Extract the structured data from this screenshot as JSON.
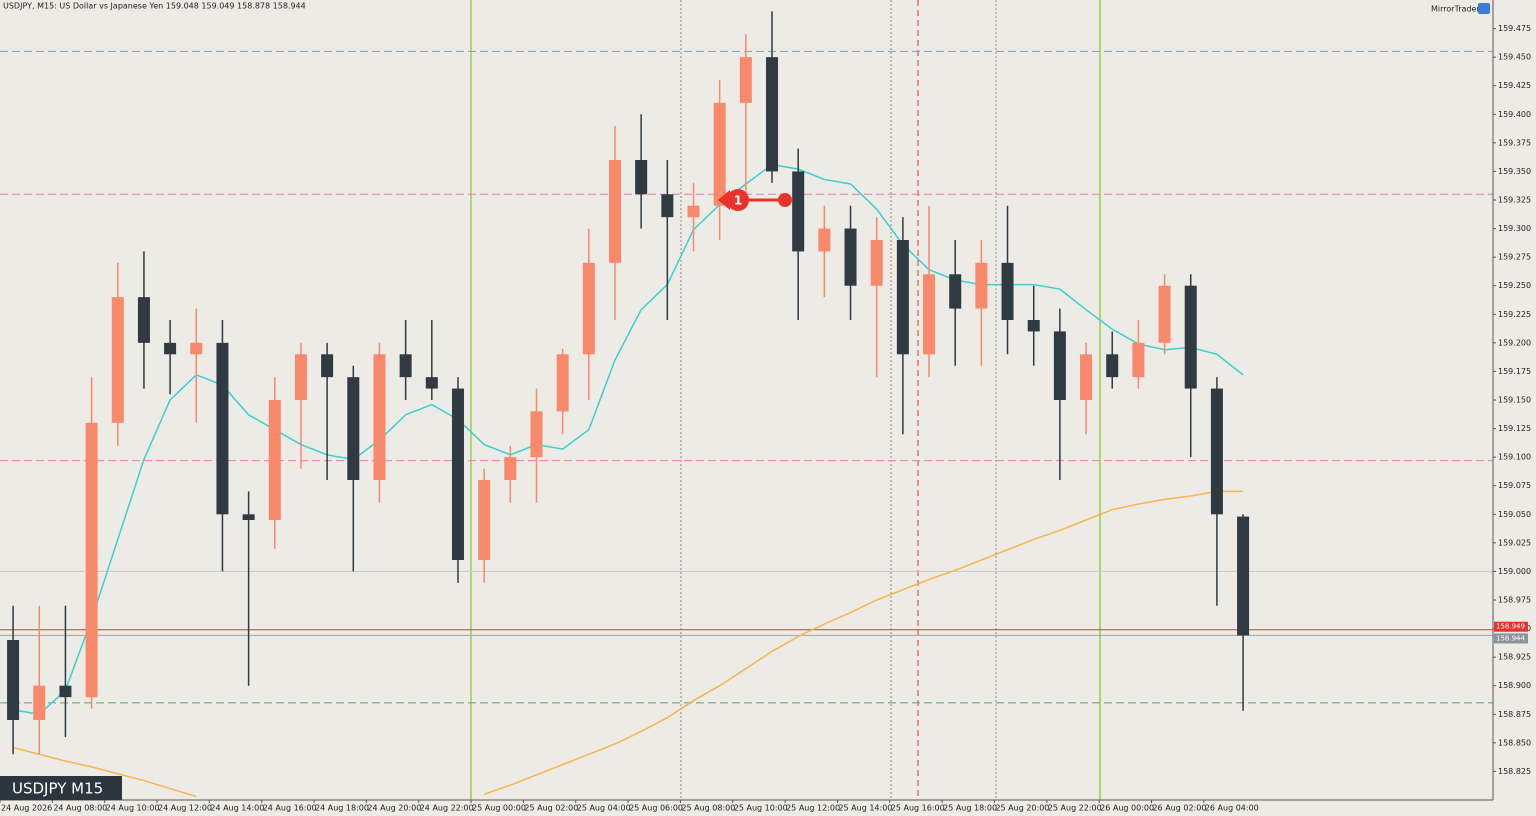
{
  "header": {
    "title": "USDJPY, M15:  US Dollar vs Japanese Yen  159.048 159.049 158.878 158.944",
    "brand": "MirrorTrader",
    "symbol_label": "USDJPY M15"
  },
  "chart_data": {
    "type": "candlestick",
    "categories": [
      "24 Aug 2026",
      null,
      "24 Aug 08:00",
      null,
      "24 Aug 10:00",
      null,
      "24 Aug 12:00",
      null,
      "24 Aug 14:00",
      null,
      "24 Aug 16:00",
      null,
      "24 Aug 18:00",
      null,
      "24 Aug 20:00",
      null,
      "24 Aug 22:00",
      null,
      "25 Aug 00:00",
      null,
      "25 Aug 02:00",
      null,
      "25 Aug 04:00",
      null,
      "25 Aug 06:00",
      null,
      "25 Aug 08:00",
      null,
      "25 Aug 10:00",
      null,
      "25 Aug 12:00",
      null,
      "25 Aug 14:00",
      null,
      "25 Aug 16:00",
      null,
      "25 Aug 18:00",
      null,
      "25 Aug 20:00",
      null,
      "25 Aug 22:00",
      null,
      "26 Aug 00:00",
      null,
      "26 Aug 02:00",
      null,
      "26 Aug 04:00",
      null
    ],
    "open": [
      158.94,
      158.87,
      158.9,
      158.89,
      159.13,
      159.24,
      159.2,
      159.19,
      159.2,
      159.05,
      159.045,
      159.15,
      159.19,
      159.17,
      159.08,
      159.19,
      159.17,
      159.16,
      159.01,
      159.08,
      159.1,
      159.14,
      159.19,
      159.27,
      159.36,
      159.33,
      159.31,
      159.32,
      159.41,
      159.45,
      159.35,
      159.28,
      159.3,
      159.25,
      159.29,
      159.19,
      159.26,
      159.23,
      159.27,
      159.22,
      159.21,
      159.15,
      159.19,
      159.17,
      159.2,
      159.25,
      159.16,
      159.048
    ],
    "high": [
      158.97,
      158.97,
      158.97,
      159.17,
      159.27,
      159.28,
      159.22,
      159.23,
      159.22,
      159.07,
      159.17,
      159.2,
      159.2,
      159.18,
      159.2,
      159.22,
      159.22,
      159.17,
      159.09,
      159.11,
      159.16,
      159.195,
      159.3,
      159.39,
      159.4,
      159.36,
      159.34,
      159.43,
      159.47,
      159.49,
      159.37,
      159.32,
      159.32,
      159.31,
      159.31,
      159.32,
      159.29,
      159.29,
      159.32,
      159.25,
      159.23,
      159.2,
      159.21,
      159.22,
      159.26,
      159.26,
      159.17,
      159.05
    ],
    "low": [
      158.84,
      158.84,
      158.855,
      158.88,
      159.11,
      159.16,
      159.155,
      159.13,
      159.0,
      158.9,
      159.02,
      159.09,
      159.08,
      159.0,
      159.06,
      159.15,
      159.15,
      158.99,
      158.99,
      159.06,
      159.06,
      159.12,
      159.15,
      159.22,
      159.3,
      159.22,
      159.28,
      159.29,
      159.33,
      159.34,
      159.22,
      159.24,
      159.22,
      159.17,
      159.12,
      159.17,
      159.18,
      159.18,
      159.19,
      159.18,
      159.08,
      159.12,
      159.16,
      159.16,
      159.19,
      159.1,
      158.97,
      158.878
    ],
    "close": [
      158.87,
      158.9,
      158.89,
      159.13,
      159.24,
      159.2,
      159.19,
      159.2,
      159.05,
      159.045,
      159.15,
      159.19,
      159.17,
      159.08,
      159.19,
      159.17,
      159.16,
      159.01,
      159.08,
      159.1,
      159.14,
      159.19,
      159.27,
      159.36,
      159.33,
      159.31,
      159.32,
      159.41,
      159.45,
      159.35,
      159.28,
      159.3,
      159.25,
      159.29,
      159.19,
      159.26,
      159.23,
      159.27,
      159.22,
      159.21,
      159.15,
      159.19,
      159.17,
      159.2,
      159.25,
      159.16,
      159.05,
      158.944
    ],
    "up_color": "#f8896a",
    "down_color": "#303a42",
    "lines": [
      {
        "color": "#3ccfd0",
        "values": [
          158.879,
          158.875,
          158.896,
          158.958,
          159.028,
          159.098,
          159.15,
          159.172,
          159.163,
          159.137,
          159.124,
          159.111,
          159.102,
          159.098,
          159.115,
          159.137,
          159.146,
          159.133,
          159.111,
          159.102,
          159.111,
          159.107,
          159.124,
          159.185,
          159.229,
          159.251,
          159.299,
          159.321,
          159.339,
          159.356,
          159.352,
          159.343,
          159.339,
          159.317,
          159.286,
          159.264,
          159.255,
          159.251,
          159.251,
          159.251,
          159.247,
          159.229,
          159.212,
          159.199,
          159.194,
          159.196,
          159.19,
          159.172
        ]
      },
      {
        "color": "#f7b54a",
        "values": [
          158.846,
          158.84,
          158.834,
          158.829,
          158.823,
          158.817,
          158.81,
          158.803,
          null,
          null,
          null,
          null,
          null,
          null,
          null,
          null,
          null,
          null,
          158.805,
          158.813,
          158.822,
          158.831,
          158.84,
          158.849,
          158.86,
          158.872,
          158.887,
          158.9,
          158.915,
          158.93,
          158.943,
          158.954,
          158.964,
          158.975,
          158.984,
          158.993,
          159.001,
          159.01,
          159.019,
          159.028,
          159.036,
          159.045,
          159.054,
          159.059,
          159.063,
          159.066,
          159.07,
          159.07
        ]
      }
    ],
    "levels": [
      {
        "value": 159.455,
        "color": "#7f9cc4",
        "dash": true
      },
      {
        "value": 159.33,
        "color": "#e97aa7",
        "dash": true
      },
      {
        "value": 159.097,
        "color": "#e97aa7",
        "dash": true
      },
      {
        "value": 159.0,
        "color": "#c8c8c8",
        "dash": false
      },
      {
        "value": 158.885,
        "color": "#5f9e74",
        "dash": true
      },
      {
        "value": 158.949,
        "color": "#e8322b",
        "dash": false
      },
      {
        "value": 158.944,
        "color": "#9aa2aa",
        "dash": false
      }
    ],
    "price_tags": [
      {
        "value": 158.949,
        "color": "#e8322b"
      },
      {
        "value": 158.944,
        "color": "#8a939c"
      }
    ],
    "trade": {
      "label": "1",
      "price": 159.325
    },
    "ylim": [
      158.8,
      159.5
    ],
    "yticks": [
      158.825,
      {
        "value": 158.85,
        "label": "158.850"
      },
      158.875,
      {
        "value": 158.9,
        "label": "158.900"
      },
      158.925,
      {
        "value": 158.95,
        "label": "158.950"
      },
      158.975,
      {
        "value": 159.0,
        "label": "159.000"
      },
      159.025,
      {
        "value": 159.05,
        "label": "159.050"
      },
      159.075,
      {
        "value": 159.1,
        "label": "159.100"
      },
      159.125,
      {
        "value": 159.15,
        "label": "159.150"
      },
      159.175,
      {
        "value": 159.2,
        "label": "159.200"
      },
      159.225,
      {
        "value": 159.25,
        "label": "159.250"
      },
      159.275,
      {
        "value": 159.3,
        "label": "159.300"
      },
      159.325,
      {
        "value": 159.35,
        "label": "159.350"
      },
      159.375,
      {
        "value": 159.4,
        "label": "159.400"
      },
      159.425,
      {
        "value": 159.45,
        "label": "159.450"
      },
      159.475
    ]
  }
}
